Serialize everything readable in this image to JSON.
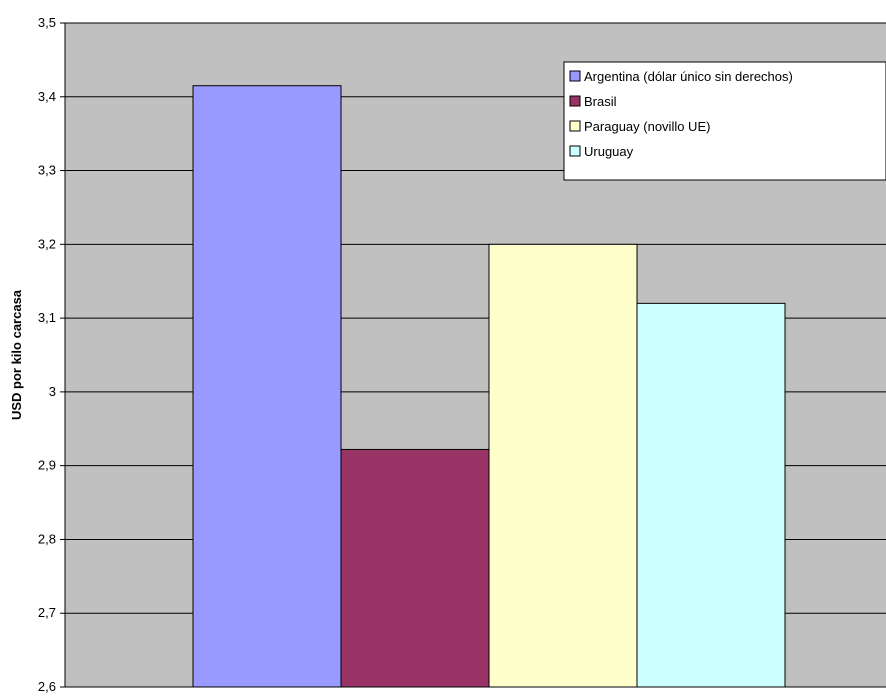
{
  "chart_data": {
    "type": "bar",
    "title": "",
    "xlabel": "",
    "ylabel": "USD por kilo  carcasa",
    "ylim": [
      2.6,
      3.5
    ],
    "yticks": [
      {
        "value": 2.6,
        "label": "2,6"
      },
      {
        "value": 2.7,
        "label": "2,7"
      },
      {
        "value": 2.8,
        "label": "2,8"
      },
      {
        "value": 2.9,
        "label": "2,9"
      },
      {
        "value": 3.0,
        "label": "3"
      },
      {
        "value": 3.1,
        "label": "3,1"
      },
      {
        "value": 3.2,
        "label": "3,2"
      },
      {
        "value": 3.3,
        "label": "3,3"
      },
      {
        "value": 3.4,
        "label": "3,4"
      },
      {
        "value": 3.5,
        "label": "3,5"
      }
    ],
    "grid": true,
    "legend_position": "top-right",
    "plot_background": "#c0c0c0",
    "series": [
      {
        "name": "Argentina (dólar único sin derechos)",
        "value": 3.415,
        "color": "#9999ff"
      },
      {
        "name": "Brasil",
        "value": 2.922,
        "color": "#993366"
      },
      {
        "name": "Paraguay (novillo UE)",
        "value": 3.2,
        "color": "#ffffcc"
      },
      {
        "name": "Uruguay",
        "value": 3.12,
        "color": "#ccffff"
      }
    ]
  }
}
